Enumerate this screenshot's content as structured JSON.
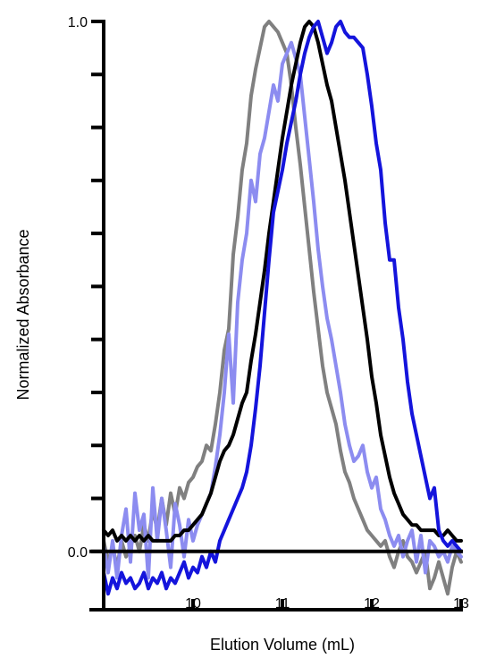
{
  "chart_data": {
    "type": "line",
    "xlabel": "Elution Volume (mL)",
    "ylabel": "Normalized Absorbance",
    "xlim": [
      9.0,
      13.0
    ],
    "ylim": [
      -0.11,
      1.0
    ],
    "xticks": [
      {
        "value": 10,
        "label": "10"
      },
      {
        "value": 11,
        "label": "11"
      },
      {
        "value": 12,
        "label": "12"
      },
      {
        "value": 13,
        "label": "13"
      }
    ],
    "yticks": [
      {
        "value": 0.0,
        "label": "0.0"
      },
      {
        "value": 0.1,
        "label": ""
      },
      {
        "value": 0.2,
        "label": ""
      },
      {
        "value": 0.3,
        "label": ""
      },
      {
        "value": 0.4,
        "label": ""
      },
      {
        "value": 0.5,
        "label": ""
      },
      {
        "value": 0.6,
        "label": ""
      },
      {
        "value": 0.7,
        "label": ""
      },
      {
        "value": 0.8,
        "label": ""
      },
      {
        "value": 0.9,
        "label": ""
      },
      {
        "value": 1.0,
        "label": "1.0"
      }
    ],
    "grid": false,
    "series": [
      {
        "color": "#808080",
        "x": [
          9.0,
          9.05,
          9.1,
          9.15,
          9.2,
          9.25,
          9.3,
          9.35,
          9.4,
          9.45,
          9.5,
          9.55,
          9.6,
          9.65,
          9.7,
          9.75,
          9.8,
          9.85,
          9.9,
          9.95,
          10.0,
          10.05,
          10.1,
          10.15,
          10.2,
          10.25,
          10.3,
          10.35,
          10.4,
          10.45,
          10.5,
          10.55,
          10.6,
          10.65,
          10.7,
          10.75,
          10.8,
          10.85,
          10.9,
          10.95,
          11.0,
          11.05,
          11.1,
          11.15,
          11.2,
          11.25,
          11.3,
          11.35,
          11.4,
          11.45,
          11.5,
          11.55,
          11.6,
          11.65,
          11.7,
          11.75,
          11.8,
          11.85,
          11.9,
          11.95,
          12.0,
          12.05,
          12.1,
          12.15,
          12.2,
          12.25,
          12.3,
          12.35,
          12.4,
          12.45,
          12.5,
          12.55,
          12.6,
          12.65,
          12.7,
          12.75,
          12.8,
          12.85,
          12.9,
          12.95,
          13.0
        ],
        "y": [
          0.02,
          -0.02,
          0.01,
          -0.03,
          0.02,
          -0.01,
          0.01,
          0.03,
          0.0,
          0.05,
          0.02,
          0.08,
          0.04,
          0.1,
          0.05,
          0.11,
          0.07,
          0.12,
          0.1,
          0.13,
          0.14,
          0.16,
          0.17,
          0.2,
          0.19,
          0.24,
          0.3,
          0.38,
          0.42,
          0.56,
          0.63,
          0.72,
          0.77,
          0.86,
          0.91,
          0.95,
          0.99,
          1.0,
          0.99,
          0.98,
          0.96,
          0.94,
          0.88,
          0.8,
          0.73,
          0.65,
          0.57,
          0.49,
          0.42,
          0.35,
          0.3,
          0.27,
          0.24,
          0.19,
          0.15,
          0.13,
          0.1,
          0.08,
          0.06,
          0.04,
          0.03,
          0.02,
          0.01,
          0.02,
          -0.01,
          -0.03,
          0.0,
          0.02,
          -0.01,
          -0.02,
          -0.04,
          -0.02,
          0.0,
          -0.07,
          -0.05,
          -0.02,
          -0.05,
          -0.08,
          -0.03,
          0.0,
          -0.02
        ]
      },
      {
        "color": "#8c8cf0",
        "x": [
          9.0,
          9.05,
          9.1,
          9.15,
          9.2,
          9.25,
          9.3,
          9.35,
          9.4,
          9.45,
          9.5,
          9.55,
          9.6,
          9.65,
          9.7,
          9.75,
          9.8,
          9.85,
          9.9,
          9.95,
          10.0,
          10.05,
          10.1,
          10.15,
          10.2,
          10.25,
          10.3,
          10.35,
          10.4,
          10.45,
          10.5,
          10.55,
          10.6,
          10.65,
          10.7,
          10.75,
          10.8,
          10.85,
          10.9,
          10.95,
          11.0,
          11.05,
          11.1,
          11.15,
          11.2,
          11.25,
          11.3,
          11.35,
          11.4,
          11.45,
          11.5,
          11.55,
          11.6,
          11.65,
          11.7,
          11.75,
          11.8,
          11.85,
          11.9,
          11.95,
          12.0,
          12.05,
          12.1,
          12.15,
          12.2,
          12.25,
          12.3,
          12.35,
          12.4,
          12.45,
          12.5,
          12.55,
          12.6,
          12.65,
          12.7,
          12.75,
          12.8,
          12.85,
          12.9,
          12.95,
          13.0
        ],
        "y": [
          0.01,
          -0.04,
          0.02,
          -0.05,
          0.03,
          0.08,
          -0.02,
          0.11,
          0.04,
          0.07,
          -0.05,
          0.12,
          0.02,
          0.1,
          0.04,
          -0.03,
          0.09,
          0.05,
          -0.01,
          0.06,
          0.02,
          0.05,
          0.07,
          0.09,
          0.11,
          0.16,
          0.22,
          0.3,
          0.41,
          0.28,
          0.47,
          0.55,
          0.6,
          0.7,
          0.66,
          0.75,
          0.78,
          0.83,
          0.88,
          0.85,
          0.92,
          0.94,
          0.96,
          0.93,
          0.9,
          0.82,
          0.74,
          0.66,
          0.57,
          0.5,
          0.44,
          0.4,
          0.35,
          0.3,
          0.24,
          0.2,
          0.17,
          0.18,
          0.2,
          0.15,
          0.12,
          0.14,
          0.08,
          0.06,
          0.03,
          0.01,
          0.03,
          -0.01,
          0.02,
          0.04,
          -0.02,
          0.03,
          -0.04,
          0.02,
          0.01,
          -0.01,
          0.0,
          -0.02,
          0.01,
          0.0,
          -0.01
        ]
      },
      {
        "color": "#000000",
        "x": [
          9.0,
          9.05,
          9.1,
          9.15,
          9.2,
          9.25,
          9.3,
          9.35,
          9.4,
          9.45,
          9.5,
          9.55,
          9.6,
          9.65,
          9.7,
          9.75,
          9.8,
          9.85,
          9.9,
          9.95,
          10.0,
          10.05,
          10.1,
          10.15,
          10.2,
          10.25,
          10.3,
          10.35,
          10.4,
          10.45,
          10.5,
          10.55,
          10.6,
          10.65,
          10.7,
          10.75,
          10.8,
          10.85,
          10.9,
          10.95,
          11.0,
          11.05,
          11.1,
          11.15,
          11.2,
          11.25,
          11.3,
          11.35,
          11.4,
          11.45,
          11.5,
          11.55,
          11.6,
          11.65,
          11.7,
          11.75,
          11.8,
          11.85,
          11.9,
          11.95,
          12.0,
          12.05,
          12.1,
          12.15,
          12.2,
          12.25,
          12.3,
          12.35,
          12.4,
          12.45,
          12.5,
          12.55,
          12.6,
          12.65,
          12.7,
          12.75,
          12.8,
          12.85,
          12.9,
          12.95,
          13.0
        ],
        "y": [
          0.04,
          0.03,
          0.04,
          0.02,
          0.03,
          0.02,
          0.03,
          0.02,
          0.03,
          0.02,
          0.03,
          0.02,
          0.02,
          0.02,
          0.02,
          0.02,
          0.03,
          0.03,
          0.04,
          0.04,
          0.05,
          0.06,
          0.07,
          0.09,
          0.11,
          0.14,
          0.17,
          0.19,
          0.2,
          0.22,
          0.25,
          0.28,
          0.3,
          0.36,
          0.41,
          0.47,
          0.53,
          0.6,
          0.66,
          0.72,
          0.78,
          0.83,
          0.88,
          0.92,
          0.96,
          0.99,
          1.0,
          0.99,
          0.96,
          0.92,
          0.88,
          0.85,
          0.8,
          0.75,
          0.7,
          0.64,
          0.58,
          0.52,
          0.46,
          0.4,
          0.33,
          0.28,
          0.22,
          0.18,
          0.14,
          0.11,
          0.09,
          0.07,
          0.06,
          0.05,
          0.05,
          0.04,
          0.04,
          0.04,
          0.04,
          0.03,
          0.03,
          0.04,
          0.03,
          0.02,
          0.02
        ]
      },
      {
        "color": "#1414dc",
        "x": [
          9.0,
          9.05,
          9.1,
          9.15,
          9.2,
          9.25,
          9.3,
          9.35,
          9.4,
          9.45,
          9.5,
          9.55,
          9.6,
          9.65,
          9.7,
          9.75,
          9.8,
          9.85,
          9.9,
          9.95,
          10.0,
          10.05,
          10.1,
          10.15,
          10.2,
          10.25,
          10.3,
          10.35,
          10.4,
          10.45,
          10.5,
          10.55,
          10.6,
          10.65,
          10.7,
          10.75,
          10.8,
          10.85,
          10.9,
          10.95,
          11.0,
          11.05,
          11.1,
          11.15,
          11.2,
          11.25,
          11.3,
          11.35,
          11.4,
          11.45,
          11.5,
          11.55,
          11.6,
          11.65,
          11.7,
          11.75,
          11.8,
          11.85,
          11.9,
          11.95,
          12.0,
          12.05,
          12.1,
          12.15,
          12.2,
          12.25,
          12.3,
          12.35,
          12.4,
          12.45,
          12.5,
          12.55,
          12.6,
          12.65,
          12.7,
          12.75,
          12.8,
          12.85,
          12.9,
          12.95,
          13.0
        ],
        "y": [
          -0.04,
          -0.08,
          -0.05,
          -0.07,
          -0.04,
          -0.06,
          -0.05,
          -0.07,
          -0.06,
          -0.04,
          -0.07,
          -0.05,
          -0.06,
          -0.04,
          -0.07,
          -0.05,
          -0.06,
          -0.04,
          -0.02,
          -0.05,
          -0.03,
          -0.04,
          -0.01,
          -0.03,
          0.0,
          -0.02,
          0.02,
          0.04,
          0.06,
          0.08,
          0.1,
          0.12,
          0.15,
          0.2,
          0.27,
          0.35,
          0.45,
          0.55,
          0.64,
          0.68,
          0.72,
          0.77,
          0.81,
          0.85,
          0.9,
          0.94,
          0.97,
          0.99,
          1.0,
          0.97,
          0.94,
          0.96,
          0.99,
          1.0,
          0.98,
          0.97,
          0.97,
          0.96,
          0.95,
          0.9,
          0.84,
          0.77,
          0.72,
          0.62,
          0.55,
          0.55,
          0.46,
          0.4,
          0.32,
          0.26,
          0.22,
          0.18,
          0.14,
          0.1,
          0.12,
          0.04,
          0.02,
          0.01,
          0.02,
          0.01,
          0.0
        ]
      }
    ]
  }
}
